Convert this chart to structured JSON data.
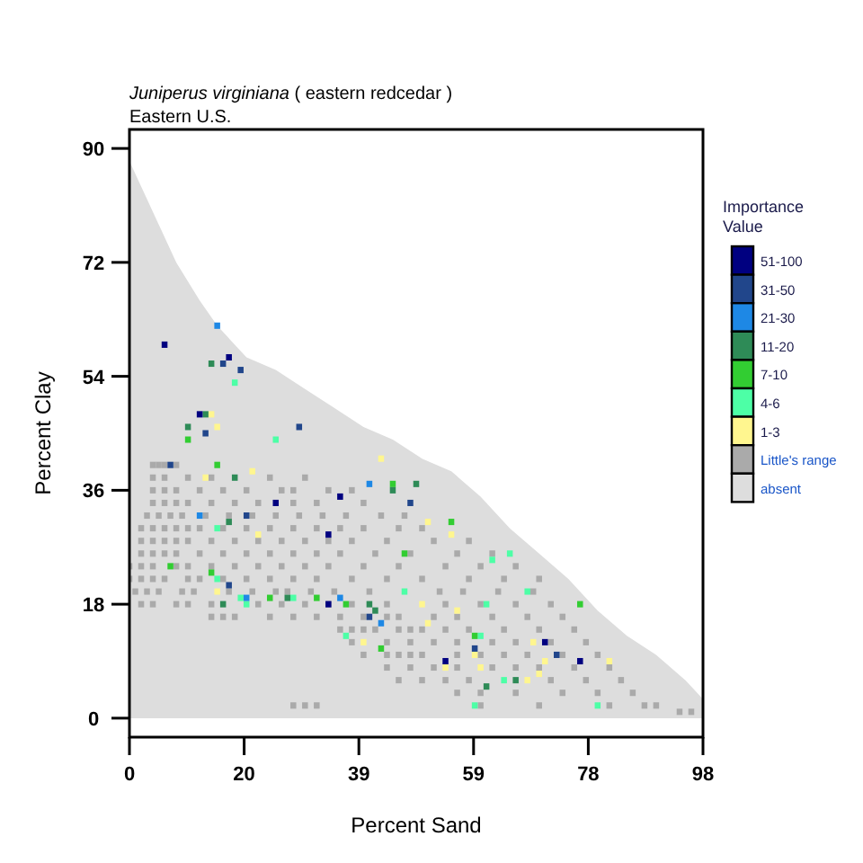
{
  "chart_data": {
    "type": "scatter",
    "title": "Juniperus virginiana ( eastern redcedar )",
    "subtitle": "Eastern U.S.",
    "xlabel": "Percent Sand",
    "ylabel": "Percent Clay",
    "legend_title": "Importance Value",
    "legend": "right",
    "marker": "square",
    "grid": false,
    "xlim": [
      0,
      98
    ],
    "ylim": [
      -3,
      93
    ],
    "xticks": [
      0,
      {
        "value": 19.6,
        "label": "20"
      },
      {
        "value": 39.2,
        "label": "39"
      },
      {
        "value": 58.8,
        "label": "59"
      },
      {
        "value": 78.4,
        "label": "78"
      },
      98
    ],
    "yticks": [
      0,
      18,
      36,
      54,
      72,
      90
    ],
    "series": [
      {
        "name": "51-100",
        "color": "#000080",
        "x": [
          6,
          17,
          12,
          25,
          36,
          34,
          34,
          71,
          77,
          54
        ],
        "values": [
          59,
          57,
          48,
          34,
          35,
          29,
          18,
          12,
          9,
          9
        ]
      },
      {
        "name": "31-50",
        "color": "#21468b",
        "x": [
          19,
          16,
          29,
          7,
          13,
          48,
          20,
          17,
          41,
          59,
          73
        ],
        "values": [
          55,
          56,
          46,
          40,
          45,
          34,
          32,
          21,
          16,
          11,
          10
        ]
      },
      {
        "name": "21-30",
        "color": "#1e88e5",
        "x": [
          15,
          41,
          12,
          20,
          36,
          43
        ],
        "values": [
          62,
          37,
          32,
          19,
          19,
          15
        ]
      },
      {
        "name": "11-20",
        "color": "#2e8b57",
        "x": [
          14,
          13,
          10,
          18,
          45,
          17,
          16,
          27,
          41,
          42,
          49,
          66,
          61
        ],
        "values": [
          56,
          48,
          46,
          38,
          36,
          31,
          18,
          19,
          18,
          17,
          37,
          6,
          5
        ]
      },
      {
        "name": "7-10",
        "color": "#32cd32",
        "x": [
          10,
          15,
          7,
          14,
          24,
          32,
          37,
          43,
          47,
          45,
          55,
          77,
          59
        ],
        "values": [
          44,
          40,
          24,
          23,
          19,
          19,
          18,
          11,
          26,
          37,
          31,
          18,
          13
        ]
      },
      {
        "name": "4-6",
        "color": "#4dffa6",
        "x": [
          18,
          25,
          15,
          15,
          19,
          20,
          28,
          37,
          47,
          62,
          65,
          68,
          61,
          60,
          64,
          59,
          80
        ],
        "values": [
          53,
          44,
          30,
          22,
          19,
          18,
          19,
          13,
          20,
          25,
          26,
          20,
          18,
          13,
          6,
          2,
          2
        ]
      },
      {
        "name": "1-3",
        "color": "#fff68f",
        "x": [
          14,
          15,
          13,
          21,
          22,
          15,
          40,
          43,
          51,
          55,
          50,
          56,
          51,
          69,
          82,
          59,
          60,
          54,
          68,
          70,
          71
        ],
        "values": [
          48,
          46,
          38,
          39,
          29,
          20,
          12,
          41,
          31,
          29,
          18,
          17,
          15,
          12,
          9,
          10,
          8,
          8,
          6,
          7,
          9
        ]
      },
      {
        "name": "Little's range",
        "color": "#aaaaaa",
        "x": [
          4,
          5,
          6,
          8,
          4,
          6,
          10,
          14,
          24,
          30,
          4,
          6,
          8,
          12,
          16,
          20,
          26,
          28,
          34,
          38,
          4,
          6,
          8,
          10,
          14,
          18,
          22,
          28,
          32,
          40,
          3,
          5,
          7,
          9,
          13,
          17,
          21,
          25,
          29,
          33,
          37,
          43,
          47,
          2,
          4,
          6,
          8,
          10,
          12,
          16,
          20,
          24,
          28,
          32,
          36,
          40,
          46,
          50,
          2,
          4,
          6,
          8,
          10,
          14,
          18,
          22,
          26,
          30,
          34,
          38,
          44,
          52,
          58,
          2,
          4,
          6,
          8,
          12,
          16,
          20,
          24,
          28,
          32,
          36,
          42,
          48,
          56,
          62,
          0,
          2,
          4,
          8,
          10,
          14,
          18,
          22,
          26,
          30,
          34,
          40,
          46,
          54,
          60,
          66,
          0,
          2,
          4,
          6,
          10,
          12,
          16,
          20,
          24,
          28,
          32,
          38,
          44,
          50,
          58,
          64,
          70,
          1,
          3,
          5,
          9,
          11,
          17,
          21,
          25,
          27,
          31,
          35,
          41,
          53,
          57,
          63,
          69,
          2,
          4,
          8,
          10,
          14,
          22,
          26,
          30,
          34,
          38,
          44,
          54,
          60,
          66,
          72,
          14,
          16,
          18,
          24,
          28,
          32,
          36,
          40,
          44,
          46,
          52,
          56,
          62,
          68,
          74,
          36,
          38,
          40,
          42,
          46,
          48,
          50,
          54,
          58,
          64,
          70,
          76,
          38,
          44,
          48,
          52,
          56,
          62,
          66,
          72,
          78,
          40,
          44,
          46,
          48,
          50,
          56,
          60,
          64,
          68,
          74,
          80,
          44,
          48,
          52,
          56,
          62,
          66,
          70,
          76,
          82,
          46,
          50,
          54,
          58,
          72,
          78,
          84,
          56,
          60,
          66,
          74,
          80,
          86,
          28,
          30,
          32,
          60,
          70,
          82,
          88,
          90,
          94,
          96
        ],
        "values": [
          40,
          40,
          40,
          40,
          38,
          38,
          38,
          38,
          38,
          38,
          36,
          36,
          36,
          36,
          36,
          36,
          36,
          36,
          36,
          36,
          34,
          34,
          34,
          34,
          34,
          34,
          34,
          34,
          34,
          34,
          32,
          32,
          32,
          32,
          32,
          32,
          32,
          32,
          32,
          32,
          32,
          32,
          32,
          30,
          30,
          30,
          30,
          30,
          30,
          30,
          30,
          30,
          30,
          30,
          30,
          30,
          30,
          30,
          28,
          28,
          28,
          28,
          28,
          28,
          28,
          28,
          28,
          28,
          28,
          28,
          28,
          28,
          28,
          26,
          26,
          26,
          26,
          26,
          26,
          26,
          26,
          26,
          26,
          26,
          26,
          26,
          26,
          26,
          24,
          24,
          24,
          24,
          24,
          24,
          24,
          24,
          24,
          24,
          24,
          24,
          24,
          24,
          24,
          24,
          22,
          22,
          22,
          22,
          22,
          22,
          22,
          22,
          22,
          22,
          22,
          22,
          22,
          22,
          22,
          22,
          22,
          20,
          20,
          20,
          20,
          20,
          20,
          20,
          20,
          20,
          20,
          20,
          20,
          20,
          20,
          20,
          20,
          18,
          18,
          18,
          18,
          18,
          18,
          18,
          18,
          18,
          18,
          18,
          18,
          18,
          18,
          18,
          16,
          16,
          16,
          16,
          16,
          16,
          16,
          16,
          16,
          16,
          16,
          16,
          16,
          16,
          16,
          14,
          14,
          14,
          14,
          14,
          14,
          14,
          14,
          14,
          14,
          14,
          14,
          12,
          12,
          12,
          12,
          12,
          12,
          12,
          12,
          12,
          10,
          10,
          10,
          10,
          10,
          10,
          10,
          10,
          10,
          10,
          10,
          8,
          8,
          8,
          8,
          8,
          8,
          8,
          8,
          8,
          6,
          6,
          6,
          6,
          6,
          6,
          6,
          4,
          4,
          4,
          4,
          4,
          4,
          2,
          2,
          2,
          2,
          2,
          2,
          2,
          2,
          1,
          1
        ]
      },
      {
        "name": "absent",
        "color": "#dddddd",
        "type": "area",
        "marker": "none",
        "x": [
          0,
          3,
          5,
          8,
          12,
          15,
          20,
          25,
          30,
          35,
          40,
          45,
          50,
          55,
          60,
          65,
          70,
          75,
          80,
          85,
          90,
          95,
          98
        ],
        "values": [
          88,
          82,
          78,
          72,
          66,
          62,
          57,
          55,
          52,
          49,
          46,
          44,
          41,
          39,
          35,
          30,
          26,
          22,
          17,
          13,
          10,
          6,
          3
        ]
      }
    ]
  }
}
